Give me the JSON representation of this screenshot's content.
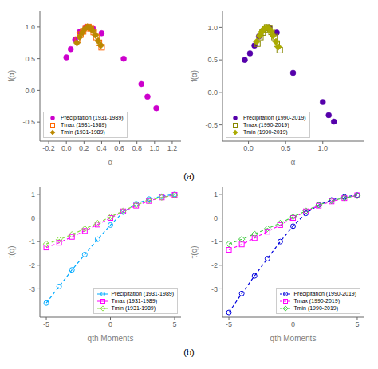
{
  "chart_data": [
    {
      "type": "scatter",
      "xlabel": "α",
      "ylabel": "f(α)",
      "xlim": [
        -0.3,
        1.3
      ],
      "ylim": [
        -0.8,
        1.25
      ],
      "xticks": [
        -0.2,
        {
          "value": 0,
          "label": "0.0"
        },
        0.2,
        0.4,
        0.6,
        0.8,
        {
          "value": 1.0,
          "label": "1.0"
        },
        1.2
      ],
      "yticks": [
        -0.5,
        {
          "value": 0,
          "label": "0.0"
        },
        0.5,
        {
          "value": 1.0,
          "label": "1.0"
        }
      ],
      "grid": false,
      "legend": "lower left",
      "annotations": [
        "(a)"
      ],
      "series": [
        {
          "name": "Precipitation (1931-1989)",
          "color": "#CC00CC",
          "marker": "circle",
          "x": [
            0.0,
            0.05,
            0.1,
            0.15,
            0.22,
            0.3,
            0.4,
            0.65,
            0.85,
            0.92,
            1.02
          ],
          "values": [
            0.52,
            0.65,
            0.8,
            0.92,
            1.0,
            0.98,
            0.9,
            0.5,
            0.1,
            -0.1,
            -0.28
          ]
        },
        {
          "name": "Tmax (1931-1989)",
          "color": "#FF6600",
          "marker": "open_square",
          "x": [
            0.13,
            0.16,
            0.19,
            0.22,
            0.25,
            0.28,
            0.31,
            0.34,
            0.37,
            0.4
          ],
          "values": [
            0.8,
            0.88,
            0.93,
            0.98,
            1.0,
            0.98,
            0.92,
            0.84,
            0.75,
            0.68
          ]
        },
        {
          "name": "Tmin (1931-1989)",
          "color": "#BB8800",
          "marker": "diamond",
          "x": [
            0.12,
            0.15,
            0.18,
            0.21,
            0.24,
            0.27,
            0.3,
            0.33,
            0.36,
            0.39
          ],
          "values": [
            0.75,
            0.84,
            0.91,
            0.97,
            1.0,
            0.99,
            0.94,
            0.87,
            0.78,
            0.71
          ]
        }
      ]
    },
    {
      "type": "scatter",
      "xlabel": "α",
      "ylabel": "f(α)",
      "xlim": [
        -0.35,
        1.55
      ],
      "ylim": [
        -0.75,
        1.25
      ],
      "xticks": [
        {
          "value": 0,
          "label": "0.0"
        },
        0.5,
        {
          "value": 1.0,
          "label": "1.0"
        }
      ],
      "yticks": [
        -0.5,
        {
          "value": 0,
          "label": "0.0"
        },
        0.5,
        {
          "value": 1.0,
          "label": "1.0"
        }
      ],
      "grid": false,
      "legend": "lower left",
      "series": [
        {
          "name": "Precipitation (1990-2019)",
          "color": "#5500AA",
          "marker": "circle",
          "x": [
            -0.05,
            0.02,
            0.08,
            0.14,
            0.2,
            0.28,
            0.38,
            0.6,
            1.0,
            1.08,
            1.15
          ],
          "values": [
            0.5,
            0.6,
            0.72,
            0.86,
            0.95,
            1.0,
            0.92,
            0.3,
            -0.15,
            -0.35,
            -0.45
          ]
        },
        {
          "name": "Tmax (1990-2019)",
          "color": "#888800",
          "marker": "open_square",
          "x": [
            0.12,
            0.16,
            0.19,
            0.22,
            0.25,
            0.28,
            0.31,
            0.35,
            0.38,
            0.42
          ],
          "values": [
            0.75,
            0.85,
            0.92,
            0.97,
            1.0,
            0.99,
            0.93,
            0.85,
            0.75,
            0.65
          ]
        },
        {
          "name": "Tmin (1990-2019)",
          "color": "#AAAA00",
          "marker": "diamond",
          "x": [
            0.11,
            0.15,
            0.18,
            0.21,
            0.24,
            0.27,
            0.3,
            0.33,
            0.37,
            0.4
          ],
          "values": [
            0.78,
            0.87,
            0.93,
            0.98,
            1.0,
            0.99,
            0.94,
            0.87,
            0.78,
            0.7
          ]
        }
      ]
    },
    {
      "type": "line",
      "xlabel": "qth Moments",
      "ylabel": "τ(q)",
      "xlim": [
        -5.5,
        5.5
      ],
      "ylim": [
        -4.2,
        1.3
      ],
      "xticks": [
        -5,
        0,
        5
      ],
      "yticks": [
        -3,
        -2,
        -1,
        0,
        1
      ],
      "grid": false,
      "legend": "lower right",
      "annotations": [
        "(b)"
      ],
      "x": [
        -5,
        -4,
        -3,
        -2,
        -1,
        0,
        1,
        2,
        3,
        4,
        5
      ],
      "series": [
        {
          "name": "Precipitation (1931-1989)",
          "color": "#00AAFF",
          "marker": "open_circle",
          "line_style": "dashed",
          "values": [
            -3.6,
            -2.9,
            -2.2,
            -1.55,
            -0.9,
            -0.3,
            0.25,
            0.6,
            0.8,
            0.92,
            1.0
          ]
        },
        {
          "name": "Tmax (1931-1989)",
          "color": "#FF00FF",
          "marker": "open_square",
          "line_style": "dashed",
          "values": [
            -1.25,
            -1.05,
            -0.8,
            -0.55,
            -0.28,
            0.0,
            0.28,
            0.52,
            0.72,
            0.87,
            0.98
          ]
        },
        {
          "name": "Tmin (1931-1989)",
          "color": "#88DD44",
          "marker": "open_diamond",
          "line_style": "dashed",
          "values": [
            -1.1,
            -0.92,
            -0.7,
            -0.46,
            -0.22,
            0.05,
            0.3,
            0.55,
            0.74,
            0.87,
            0.96
          ]
        }
      ]
    },
    {
      "type": "line",
      "xlabel": "qth Moments",
      "ylabel": "τ(q)",
      "xlim": [
        -5.5,
        5.5
      ],
      "ylim": [
        -4.2,
        1.3
      ],
      "xticks": [
        -5,
        0,
        5
      ],
      "yticks": [
        -3,
        -2,
        -1,
        0,
        1
      ],
      "grid": false,
      "legend": "lower right",
      "x": [
        -5,
        -4,
        -3,
        -2,
        -1,
        0,
        1,
        2,
        3,
        4,
        5
      ],
      "series": [
        {
          "name": "Precipitation (1990-2019)",
          "color": "#0000DD",
          "marker": "open_circle",
          "line_style": "dashed",
          "values": [
            -4.0,
            -3.2,
            -2.45,
            -1.72,
            -1.0,
            -0.35,
            0.2,
            0.55,
            0.76,
            0.89,
            0.97
          ]
        },
        {
          "name": "Tmax (1990-2019)",
          "color": "#FF00FF",
          "marker": "open_square",
          "line_style": "dashed",
          "values": [
            -1.35,
            -1.12,
            -0.85,
            -0.58,
            -0.3,
            0.0,
            0.28,
            0.52,
            0.7,
            0.84,
            0.96
          ]
        },
        {
          "name": "Tmin (1990-2019)",
          "color": "#44CC44",
          "marker": "open_diamond",
          "line_style": "dashed",
          "values": [
            -1.1,
            -0.9,
            -0.68,
            -0.45,
            -0.22,
            0.05,
            0.3,
            0.55,
            0.73,
            0.85,
            0.94
          ]
        }
      ]
    }
  ]
}
